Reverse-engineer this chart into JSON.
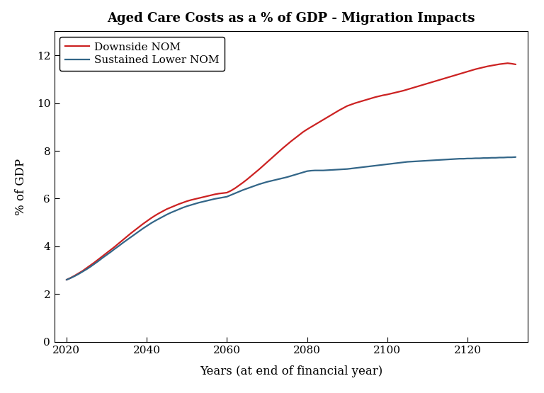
{
  "title": "Aged Care Costs as a % of GDP - Migration Impacts",
  "xlabel": "Years (at end of financial year)",
  "ylabel": "% of GDP",
  "xlim": [
    2017,
    2135
  ],
  "ylim": [
    0,
    13
  ],
  "yticks": [
    0,
    2,
    4,
    6,
    8,
    10,
    12
  ],
  "xticks": [
    2020,
    2040,
    2060,
    2080,
    2100,
    2120
  ],
  "legend_labels": [
    "Downside NOM",
    "Sustained Lower NOM"
  ],
  "line_colors": [
    "#cc2222",
    "#336688"
  ],
  "line_width": 1.6,
  "background_color": "#ffffff",
  "downside_nom": {
    "x": [
      2020,
      2021,
      2022,
      2023,
      2024,
      2025,
      2026,
      2027,
      2028,
      2029,
      2030,
      2031,
      2032,
      2033,
      2034,
      2035,
      2036,
      2037,
      2038,
      2039,
      2040,
      2041,
      2042,
      2043,
      2044,
      2045,
      2046,
      2047,
      2048,
      2049,
      2050,
      2051,
      2052,
      2053,
      2054,
      2055,
      2056,
      2057,
      2058,
      2059,
      2060,
      2061,
      2062,
      2063,
      2064,
      2065,
      2066,
      2067,
      2068,
      2069,
      2070,
      2071,
      2072,
      2073,
      2074,
      2075,
      2076,
      2077,
      2078,
      2079,
      2080,
      2081,
      2082,
      2083,
      2084,
      2085,
      2086,
      2087,
      2088,
      2089,
      2090,
      2091,
      2092,
      2093,
      2094,
      2095,
      2096,
      2097,
      2098,
      2099,
      2100,
      2101,
      2102,
      2103,
      2104,
      2105,
      2106,
      2107,
      2108,
      2109,
      2110,
      2111,
      2112,
      2113,
      2114,
      2115,
      2116,
      2117,
      2118,
      2119,
      2120,
      2121,
      2122,
      2123,
      2124,
      2125,
      2126,
      2127,
      2128,
      2129,
      2130,
      2131,
      2132
    ],
    "y": [
      2.6,
      2.68,
      2.77,
      2.87,
      2.97,
      3.09,
      3.21,
      3.33,
      3.46,
      3.59,
      3.72,
      3.85,
      3.98,
      4.12,
      4.26,
      4.4,
      4.54,
      4.67,
      4.8,
      4.93,
      5.05,
      5.17,
      5.28,
      5.38,
      5.47,
      5.56,
      5.63,
      5.7,
      5.77,
      5.83,
      5.89,
      5.94,
      5.98,
      6.02,
      6.06,
      6.1,
      6.14,
      6.18,
      6.21,
      6.23,
      6.25,
      6.33,
      6.43,
      6.55,
      6.67,
      6.8,
      6.94,
      7.08,
      7.22,
      7.37,
      7.52,
      7.67,
      7.82,
      7.97,
      8.12,
      8.26,
      8.4,
      8.53,
      8.66,
      8.79,
      8.9,
      9.0,
      9.1,
      9.2,
      9.3,
      9.4,
      9.5,
      9.6,
      9.7,
      9.79,
      9.88,
      9.94,
      10.0,
      10.05,
      10.1,
      10.15,
      10.2,
      10.25,
      10.29,
      10.33,
      10.36,
      10.4,
      10.44,
      10.48,
      10.52,
      10.57,
      10.62,
      10.67,
      10.72,
      10.77,
      10.82,
      10.87,
      10.92,
      10.97,
      11.02,
      11.07,
      11.12,
      11.17,
      11.22,
      11.27,
      11.32,
      11.37,
      11.42,
      11.46,
      11.5,
      11.54,
      11.57,
      11.6,
      11.63,
      11.65,
      11.67,
      11.65,
      11.62
    ]
  },
  "sustained_lower_nom": {
    "x": [
      2020,
      2021,
      2022,
      2023,
      2024,
      2025,
      2026,
      2027,
      2028,
      2029,
      2030,
      2031,
      2032,
      2033,
      2034,
      2035,
      2036,
      2037,
      2038,
      2039,
      2040,
      2041,
      2042,
      2043,
      2044,
      2045,
      2046,
      2047,
      2048,
      2049,
      2050,
      2051,
      2052,
      2053,
      2054,
      2055,
      2056,
      2057,
      2058,
      2059,
      2060,
      2061,
      2062,
      2063,
      2064,
      2065,
      2066,
      2067,
      2068,
      2069,
      2070,
      2071,
      2072,
      2073,
      2074,
      2075,
      2076,
      2077,
      2078,
      2079,
      2080,
      2081,
      2082,
      2083,
      2084,
      2085,
      2086,
      2087,
      2088,
      2089,
      2090,
      2091,
      2092,
      2093,
      2094,
      2095,
      2096,
      2097,
      2098,
      2099,
      2100,
      2101,
      2102,
      2103,
      2104,
      2105,
      2106,
      2107,
      2108,
      2109,
      2110,
      2111,
      2112,
      2113,
      2114,
      2115,
      2116,
      2117,
      2118,
      2119,
      2120,
      2121,
      2122,
      2123,
      2124,
      2125,
      2126,
      2127,
      2128,
      2129,
      2130,
      2131,
      2132
    ],
    "y": [
      2.6,
      2.67,
      2.75,
      2.84,
      2.94,
      3.04,
      3.15,
      3.27,
      3.39,
      3.52,
      3.64,
      3.76,
      3.89,
      4.01,
      4.14,
      4.26,
      4.38,
      4.5,
      4.62,
      4.74,
      4.85,
      4.96,
      5.06,
      5.15,
      5.24,
      5.33,
      5.41,
      5.48,
      5.55,
      5.62,
      5.68,
      5.73,
      5.78,
      5.83,
      5.87,
      5.91,
      5.95,
      5.99,
      6.02,
      6.05,
      6.08,
      6.15,
      6.22,
      6.29,
      6.36,
      6.42,
      6.48,
      6.54,
      6.6,
      6.65,
      6.7,
      6.74,
      6.78,
      6.82,
      6.86,
      6.9,
      6.95,
      7.0,
      7.05,
      7.1,
      7.15,
      7.17,
      7.18,
      7.18,
      7.18,
      7.19,
      7.2,
      7.21,
      7.22,
      7.23,
      7.24,
      7.26,
      7.28,
      7.3,
      7.32,
      7.34,
      7.36,
      7.38,
      7.4,
      7.42,
      7.44,
      7.46,
      7.48,
      7.5,
      7.52,
      7.54,
      7.55,
      7.56,
      7.57,
      7.58,
      7.59,
      7.6,
      7.61,
      7.62,
      7.63,
      7.64,
      7.65,
      7.66,
      7.67,
      7.67,
      7.68,
      7.68,
      7.69,
      7.69,
      7.7,
      7.7,
      7.71,
      7.71,
      7.72,
      7.72,
      7.73,
      7.73,
      7.74
    ]
  }
}
